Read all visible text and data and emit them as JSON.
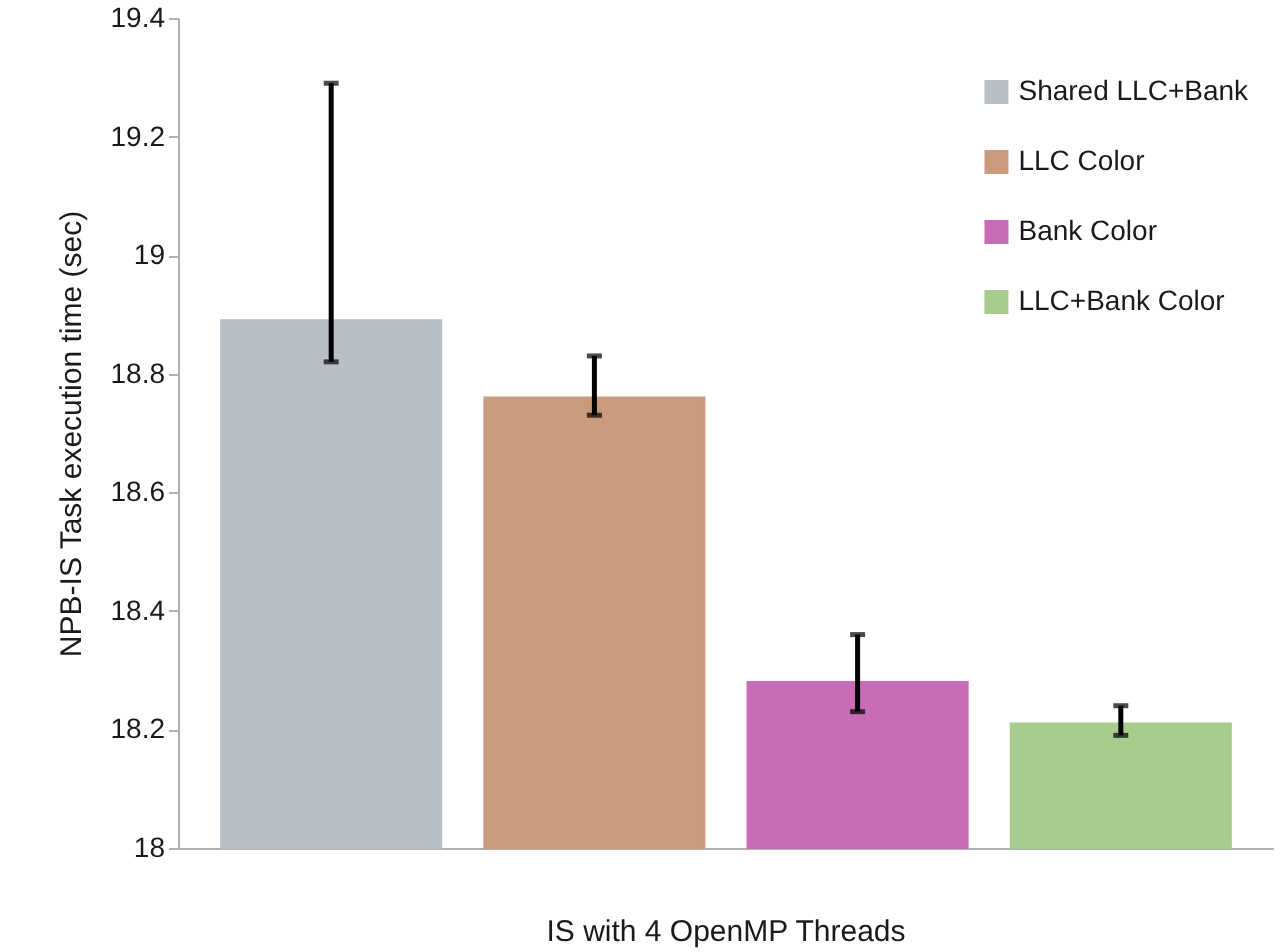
{
  "chart_data": {
    "type": "bar",
    "categories": [
      "IS with 4 OpenMP Threads"
    ],
    "ylabel": "NPB-IS Task execution time (sec)",
    "ylim": [
      18,
      19.4
    ],
    "yticks": [
      18,
      18.2,
      18.4,
      18.6,
      18.8,
      19,
      19.2,
      19.4
    ],
    "grid": false,
    "legend": "top right",
    "series": [
      {
        "name": "Shared LLC+Bank",
        "color": "#b8bfc6",
        "values": [
          18.89
        ],
        "errors": [
          [
            18.82,
            19.29
          ]
        ]
      },
      {
        "name": "LLC Color",
        "color": "#c99a7c",
        "values": [
          18.76
        ],
        "errors": [
          [
            18.73,
            18.83
          ]
        ]
      },
      {
        "name": "Bank Color",
        "color": "#c86cb6",
        "values": [
          18.28
        ],
        "errors": [
          [
            18.23,
            18.36
          ]
        ]
      },
      {
        "name": "LLC+Bank Color",
        "color": "#a9cb8d",
        "values": [
          18.21
        ],
        "errors": [
          [
            18.19,
            18.24
          ]
        ]
      }
    ]
  }
}
